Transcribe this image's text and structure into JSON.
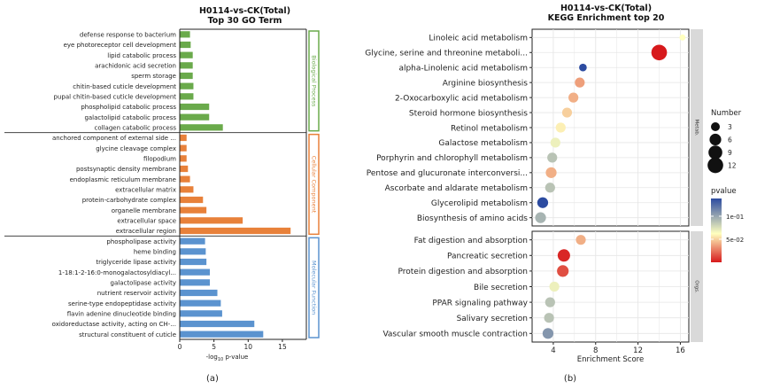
{
  "figure": {
    "panel_a_caption": "(a)",
    "panel_b_caption": "(b)"
  },
  "chart_data": [
    {
      "type": "bar",
      "orientation": "horizontal",
      "title": "H0114-vs-CK(Total)",
      "subtitle": "Top 30 GO Term",
      "xlabel_prefix": "-log",
      "xlabel_sub": "10",
      "xlabel_suffix": " p-value",
      "xlim": [
        0,
        18.5
      ],
      "xticks": [
        0,
        5,
        10,
        15
      ],
      "grid": false,
      "colors": {
        "Biological Process": "#6aaa4b",
        "Cellular Component": "#e8813a",
        "Molecular Function": "#5b93cf"
      },
      "groups": [
        {
          "name": "Biological Process",
          "categories": [
            "defense response to bacterium",
            "eye photoreceptor cell development",
            "lipid catabolic process",
            "arachidonic acid secretion",
            "sperm storage",
            "chitin-based cuticle development",
            "pupal chitin-based cuticle development",
            "phospholipid catabolic process",
            "galactolipid catabolic process",
            "collagen catabolic process"
          ],
          "values": [
            1.5,
            1.6,
            1.9,
            1.9,
            1.9,
            2.0,
            2.0,
            4.3,
            4.3,
            6.3
          ]
        },
        {
          "name": "Cellular Component",
          "categories": [
            "anchored component of external side ...",
            "glycine cleavage complex",
            "filopodium",
            "postsynaptic density membrane",
            "endoplasmic reticulum membrane",
            "extracellular matrix",
            "protein-carbohydrate complex",
            "organelle membrane",
            "extracellular space",
            "extracellular region"
          ],
          "values": [
            1.0,
            1.0,
            1.0,
            1.2,
            1.5,
            2.0,
            3.4,
            3.9,
            9.2,
            16.2
          ]
        },
        {
          "name": "Molecular Function",
          "categories": [
            "phospholipase activity",
            "heme binding",
            "triglyceride lipase activity",
            "1-18:1-2-16:0-monogalactosyldiacyl...",
            "galactolipase activity",
            "nutrient reservoir activity",
            "serine-type endopeptidase activity",
            "flavin adenine dinucleotide binding",
            "oxidoreductase activity, acting on CH-...",
            "structural constituent of cuticle"
          ],
          "values": [
            3.7,
            3.8,
            3.9,
            4.4,
            4.4,
            5.5,
            6.0,
            6.2,
            10.9,
            12.2
          ]
        }
      ]
    },
    {
      "type": "scatter",
      "title": "H0114-vs-CK(Total)",
      "subtitle": "KEGG Enrichment top 20",
      "xlabel": "Enrichment Score",
      "xlim": [
        2,
        16.8
      ],
      "xticks": [
        4,
        8,
        12,
        16
      ],
      "grid": true,
      "legend_size": {
        "title": "Number",
        "levels": [
          3,
          6,
          9,
          12
        ]
      },
      "legend_color": {
        "title": "pvalue",
        "ticks": [
          "1e-01",
          "5e-02"
        ],
        "low_color": "#d7191c",
        "mid_color": "#ffffbf",
        "high_color": "#2c4ba0"
      },
      "panels": [
        {
          "strip_label": "Metab.",
          "points": [
            {
              "term": "Linoleic acid metabolism",
              "x": 16.2,
              "size": 1,
              "pvalue": 0.08
            },
            {
              "term": "Glycine, serine and threonine metaboli...",
              "x": 14.0,
              "size": 12,
              "pvalue": 0.008
            },
            {
              "term": "alpha-Linolenic acid metabolism",
              "x": 6.8,
              "size": 2,
              "pvalue": 0.14
            },
            {
              "term": "Arginine biosynthesis",
              "x": 6.5,
              "size": 4,
              "pvalue": 0.05
            },
            {
              "term": "2-Oxocarboxylic acid metabolism",
              "x": 5.9,
              "size": 4,
              "pvalue": 0.055
            },
            {
              "term": "Steroid hormone biosynthesis",
              "x": 5.3,
              "size": 4,
              "pvalue": 0.065
            },
            {
              "term": "Retinol metabolism",
              "x": 4.7,
              "size": 4,
              "pvalue": 0.075
            },
            {
              "term": "Galactose metabolism",
              "x": 4.2,
              "size": 4,
              "pvalue": 0.085
            },
            {
              "term": "Porphyrin and chlorophyll metabolism",
              "x": 3.9,
              "size": 4,
              "pvalue": 0.1
            },
            {
              "term": "Pentose and glucuronate interconversi...",
              "x": 3.8,
              "size": 5,
              "pvalue": 0.055
            },
            {
              "term": "Ascorbate and aldarate metabolism",
              "x": 3.7,
              "size": 4,
              "pvalue": 0.1
            },
            {
              "term": "Glycerolipid metabolism",
              "x": 3.0,
              "size": 5,
              "pvalue": 0.14
            },
            {
              "term": "Biosynthesis of amino acids",
              "x": 2.8,
              "size": 5,
              "pvalue": 0.105
            }
          ]
        },
        {
          "strip_label": "Orgs.",
          "points": [
            {
              "term": "Fat digestion and absorption",
              "x": 6.6,
              "size": 4,
              "pvalue": 0.055
            },
            {
              "term": "Pancreatic secretion",
              "x": 5.0,
              "size": 7,
              "pvalue": 0.012
            },
            {
              "term": "Protein digestion and absorption",
              "x": 4.9,
              "size": 6,
              "pvalue": 0.025
            },
            {
              "term": "Bile secretion",
              "x": 4.1,
              "size": 4,
              "pvalue": 0.085
            },
            {
              "term": "PPAR signaling pathway",
              "x": 3.7,
              "size": 4,
              "pvalue": 0.1
            },
            {
              "term": "Salivary secretion",
              "x": 3.6,
              "size": 4,
              "pvalue": 0.1
            },
            {
              "term": "Vascular smooth muscle contraction",
              "x": 3.5,
              "size": 5,
              "pvalue": 0.115
            }
          ]
        }
      ]
    }
  ]
}
